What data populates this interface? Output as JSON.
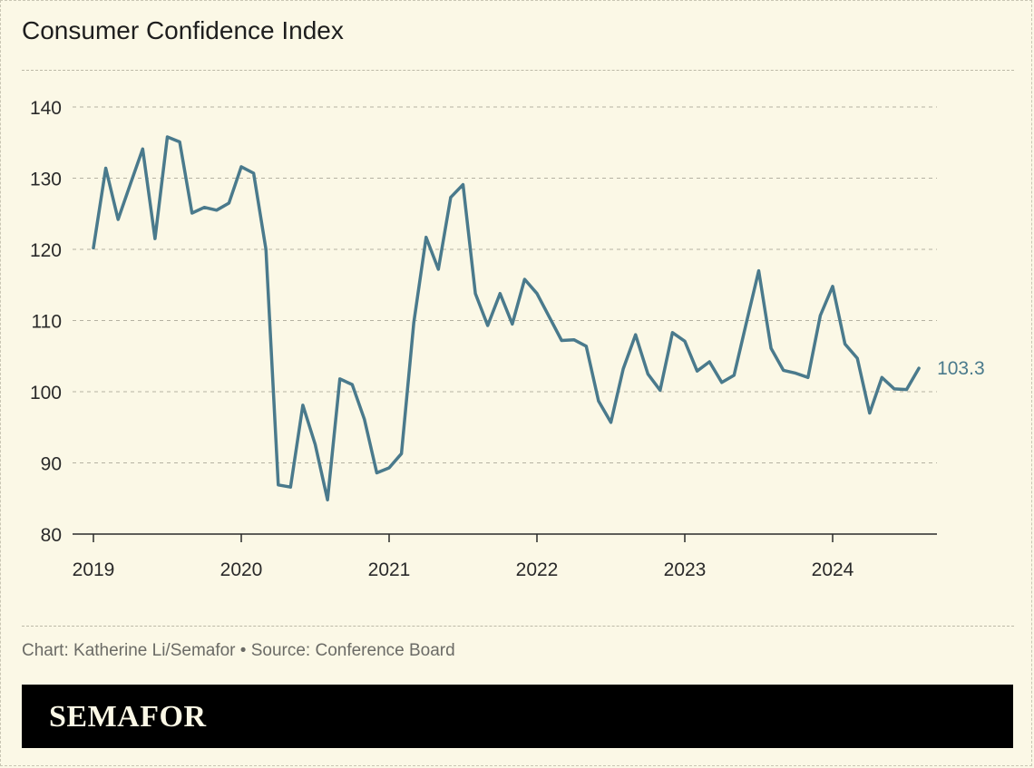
{
  "header": {
    "title": "Consumer Confidence Index"
  },
  "footer": {
    "credit": "Chart: Katherine Li/Semafor • Source: Conference Board",
    "brand": "SEMAFOR"
  },
  "colors": {
    "line": "#4a7a8c",
    "background": "#fbf8e6",
    "grid": "#b5b2a2",
    "footer_bg": "#000000"
  },
  "chart_data": {
    "type": "line",
    "title": "Consumer Confidence Index",
    "xlabel": "",
    "ylabel": "",
    "ylim": [
      80,
      140
    ],
    "yticks": [
      80,
      90,
      100,
      110,
      120,
      130,
      140
    ],
    "xticks": [
      "2019",
      "2020",
      "2021",
      "2022",
      "2023",
      "2024"
    ],
    "grid": true,
    "end_label": "103.3",
    "series": [
      {
        "x": [
          "2019-01",
          "2019-02",
          "2019-03",
          "2019-04",
          "2019-05",
          "2019-06",
          "2019-07",
          "2019-08",
          "2019-09",
          "2019-10",
          "2019-11",
          "2019-12",
          "2020-01",
          "2020-02",
          "2020-03",
          "2020-04",
          "2020-05",
          "2020-06",
          "2020-07",
          "2020-08",
          "2020-09",
          "2020-10",
          "2020-11",
          "2020-12",
          "2021-01",
          "2021-02",
          "2021-03",
          "2021-04",
          "2021-05",
          "2021-06",
          "2021-07",
          "2021-08",
          "2021-09",
          "2021-10",
          "2021-11",
          "2021-12",
          "2022-01",
          "2022-02",
          "2022-03",
          "2022-04",
          "2022-05",
          "2022-06",
          "2022-07",
          "2022-08",
          "2022-09",
          "2022-10",
          "2022-11",
          "2022-12",
          "2023-01",
          "2023-02",
          "2023-03",
          "2023-04",
          "2023-05",
          "2023-06",
          "2023-07",
          "2023-08",
          "2023-09",
          "2023-10",
          "2023-11",
          "2023-12",
          "2024-01",
          "2024-02",
          "2024-03",
          "2024-04",
          "2024-05",
          "2024-06",
          "2024-07",
          "2024-08"
        ],
        "values": [
          120.2,
          131.4,
          124.2,
          129.2,
          134.1,
          121.5,
          135.8,
          135.1,
          125.1,
          125.9,
          125.5,
          126.5,
          131.6,
          130.7,
          120.0,
          86.9,
          86.6,
          98.1,
          92.6,
          84.8,
          101.8,
          101.0,
          96.1,
          88.6,
          89.3,
          91.3,
          109.7,
          121.7,
          117.2,
          127.3,
          129.1,
          113.8,
          109.3,
          113.8,
          109.5,
          115.8,
          113.8,
          110.5,
          107.2,
          107.3,
          106.4,
          98.7,
          95.7,
          103.2,
          108.0,
          102.5,
          100.2,
          108.3,
          107.1,
          102.9,
          104.2,
          101.3,
          102.3,
          109.7,
          117.0,
          106.1,
          103.0,
          102.6,
          102.0,
          110.7,
          114.8,
          106.7,
          104.7,
          97.0,
          102.0,
          100.4,
          100.3,
          103.3
        ]
      }
    ]
  }
}
